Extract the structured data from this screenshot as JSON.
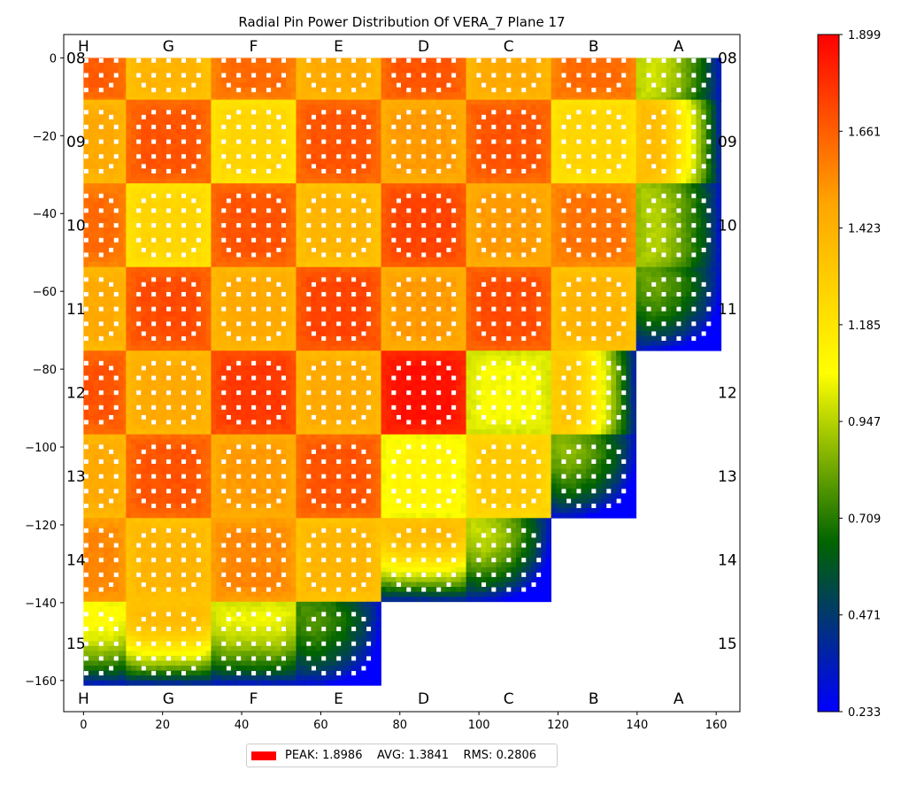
{
  "chart_data": {
    "type": "heatmap",
    "title": "Radial Pin Power Distribution Of VERA_7 Plane 17",
    "xlabel": "",
    "ylabel": "",
    "xlim": [
      -5,
      166
    ],
    "ylim": [
      -168,
      6
    ],
    "x_ticks": [
      0,
      20,
      40,
      60,
      80,
      100,
      120,
      140,
      160
    ],
    "y_ticks": [
      0,
      -20,
      -40,
      -60,
      -80,
      -100,
      -120,
      -140,
      -160
    ],
    "column_labels": [
      "H",
      "G",
      "F",
      "E",
      "D",
      "C",
      "B",
      "A"
    ],
    "row_labels": [
      "08",
      "09",
      "10",
      "11",
      "12",
      "13",
      "14",
      "15"
    ],
    "assemblies_per_row": [
      8,
      8,
      8,
      8,
      7,
      7,
      6,
      4
    ],
    "assembly_relative_power": [
      [
        1.66,
        1.4,
        1.62,
        1.45,
        1.68,
        1.45,
        1.62,
        1.0
      ],
      [
        1.45,
        1.68,
        1.25,
        1.68,
        1.5,
        1.68,
        1.25,
        1.4
      ],
      [
        1.62,
        1.25,
        1.68,
        1.4,
        1.72,
        1.5,
        1.6,
        0.95
      ],
      [
        1.45,
        1.7,
        1.45,
        1.72,
        1.5,
        1.7,
        1.4,
        0.85
      ],
      [
        1.68,
        1.45,
        1.75,
        1.45,
        1.85,
        1.05,
        1.35
      ],
      [
        1.45,
        1.68,
        1.5,
        1.68,
        1.1,
        1.3,
        0.9
      ],
      [
        1.55,
        1.4,
        1.55,
        1.4,
        1.4,
        1.0
      ],
      [
        1.1,
        1.4,
        1.05,
        0.8
      ]
    ],
    "colorbar": {
      "min": 0.233,
      "max": 1.899,
      "tick_labels": [
        "1.899",
        "1.661",
        "1.423",
        "1.185",
        "0.947",
        "0.709",
        "0.471",
        "0.233"
      ],
      "colors": [
        "#0000ff",
        "#006400",
        "#ffff00",
        "#ffa500",
        "#ff0000"
      ]
    },
    "legend": {
      "entry": "PEAK: 1.8986    AVG: 1.3841    RMS: 0.2806",
      "placement": "bottom",
      "color": "#ff0000"
    }
  }
}
